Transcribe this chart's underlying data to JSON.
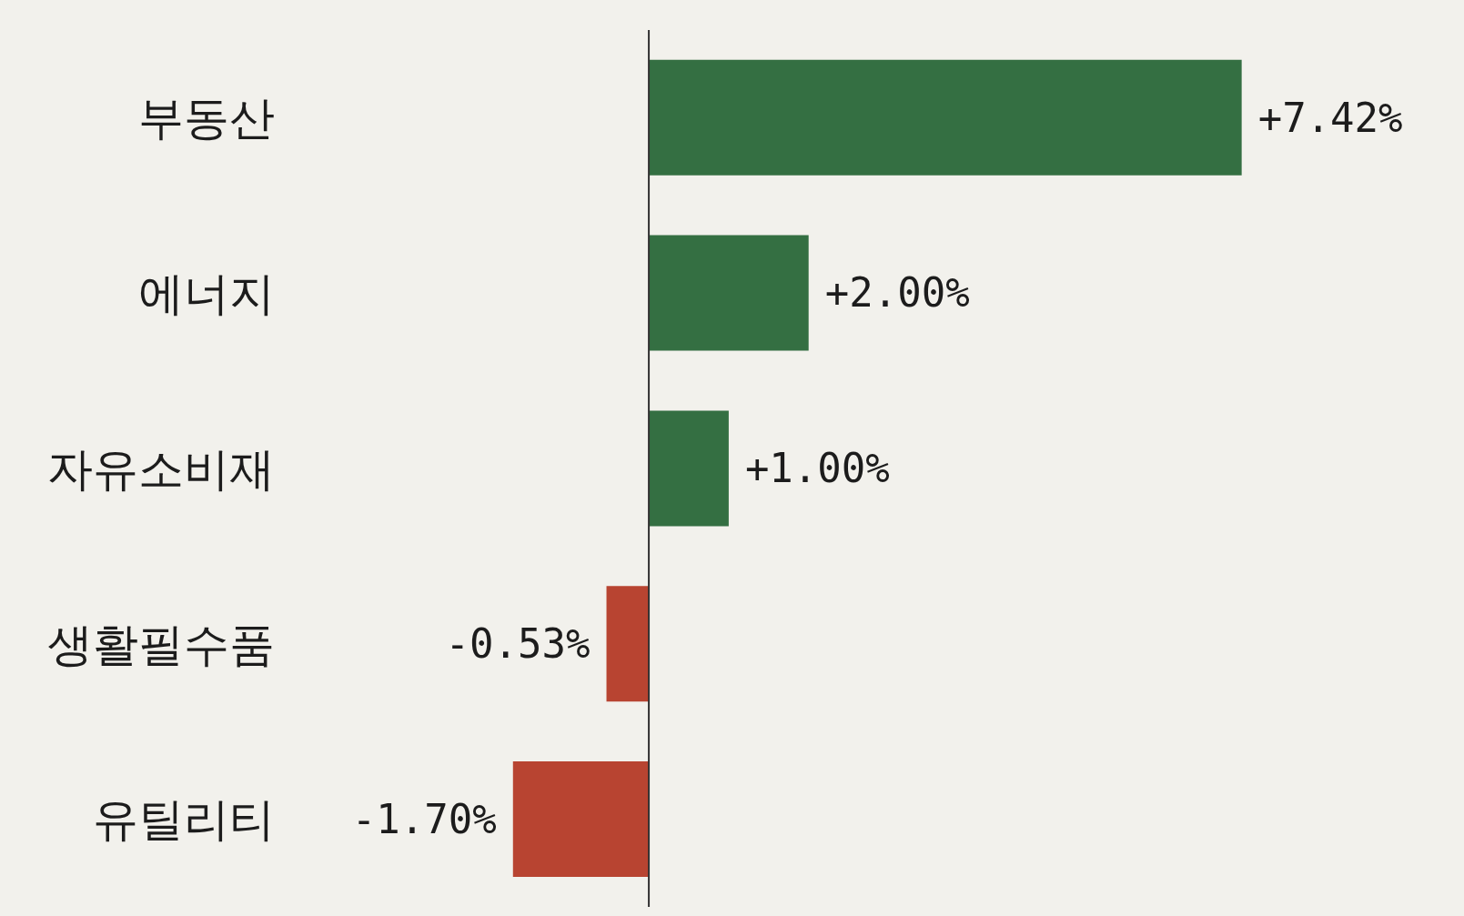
{
  "chart_data": {
    "type": "bar",
    "orientation": "horizontal",
    "categories": [
      "부동산",
      "에너지",
      "자유소비재",
      "생활필수품",
      "유틸리티"
    ],
    "values": [
      7.42,
      2.0,
      1.0,
      -0.53,
      -1.7
    ],
    "colors": [
      "#346f42",
      "#346f42",
      "#346f42",
      "#b84431",
      "#b84431"
    ],
    "value_labels": [
      "+7.42%",
      "+2.00%",
      "+1.00%",
      "-0.53%",
      "-1.70%"
    ],
    "tick_labels": "y"
  }
}
